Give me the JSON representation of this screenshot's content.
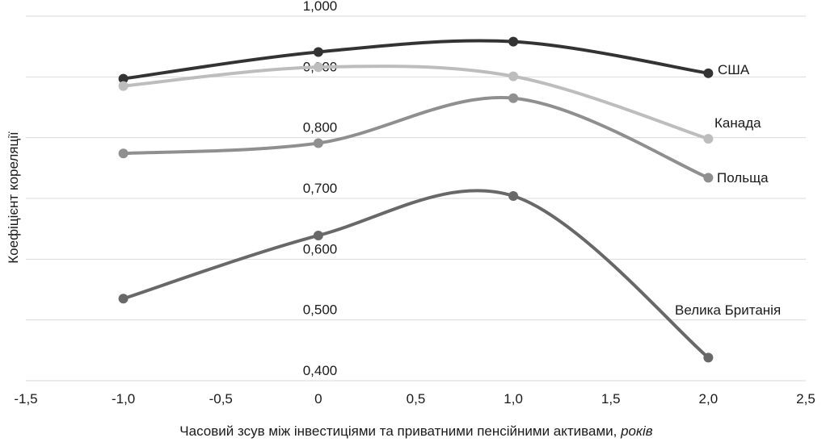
{
  "chart_data": {
    "type": "line",
    "title": "",
    "xlabel": "Часовий зсув між інвестиціями та приватними пенсійними активами, ",
    "xlabel_italic": "років",
    "ylabel": "Коефіцієнт кореляції",
    "xlim": [
      -1.5,
      2.5
    ],
    "ylim": [
      0.4,
      1.0
    ],
    "x_ticks": [
      "-1,5",
      "-1,0",
      "-0,5",
      "0",
      "0,5",
      "1,0",
      "1,5",
      "2,0",
      "2,5"
    ],
    "y_ticks": [
      "0,400",
      "0,500",
      "0,600",
      "0,700",
      "0,800",
      "0,900",
      "1,000"
    ],
    "grid": true,
    "legend": "inline-right",
    "x": [
      -1.0,
      0.0,
      1.0,
      2.0
    ],
    "series": [
      {
        "name": "США",
        "color": "#333333",
        "values": [
          0.897,
          0.941,
          0.958,
          0.906
        ]
      },
      {
        "name": "Канада",
        "color": "#bdbdbd",
        "values": [
          0.885,
          0.916,
          0.901,
          0.798
        ]
      },
      {
        "name": "Польща",
        "color": "#8f8f8f",
        "values": [
          0.774,
          0.791,
          0.865,
          0.734
        ]
      },
      {
        "name": "Велика Британія",
        "color": "#686868",
        "values": [
          0.535,
          0.639,
          0.704,
          0.438
        ]
      }
    ]
  }
}
